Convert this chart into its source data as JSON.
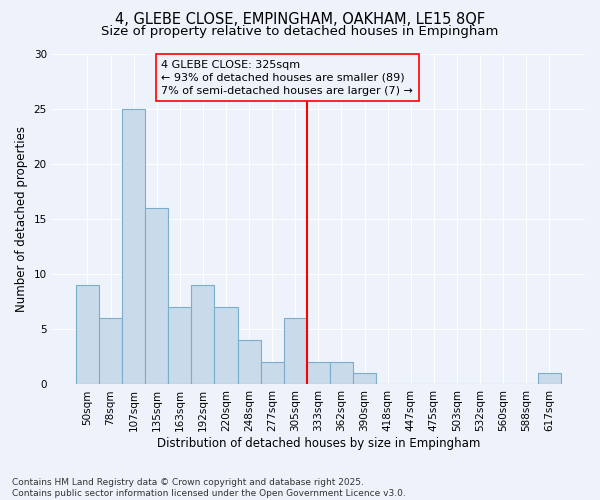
{
  "title1": "4, GLEBE CLOSE, EMPINGHAM, OAKHAM, LE15 8QF",
  "title2": "Size of property relative to detached houses in Empingham",
  "xlabel": "Distribution of detached houses by size in Empingham",
  "ylabel": "Number of detached properties",
  "categories": [
    "50sqm",
    "78sqm",
    "107sqm",
    "135sqm",
    "163sqm",
    "192sqm",
    "220sqm",
    "248sqm",
    "277sqm",
    "305sqm",
    "333sqm",
    "362sqm",
    "390sqm",
    "418sqm",
    "447sqm",
    "475sqm",
    "503sqm",
    "532sqm",
    "560sqm",
    "588sqm",
    "617sqm"
  ],
  "values": [
    9,
    6,
    25,
    16,
    7,
    9,
    7,
    4,
    2,
    6,
    2,
    2,
    1,
    0,
    0,
    0,
    0,
    0,
    0,
    0,
    1
  ],
  "bar_color": "#c9daea",
  "bar_edge_color": "#7aaecc",
  "vline_color": "red",
  "vline_pos": 9.5,
  "annotation_text": "4 GLEBE CLOSE: 325sqm\n← 93% of detached houses are smaller (89)\n7% of semi-detached houses are larger (7) →",
  "annotation_box_color": "red",
  "annotation_bg": "#eef3fb",
  "ylim": [
    0,
    30
  ],
  "yticks": [
    0,
    5,
    10,
    15,
    20,
    25,
    30
  ],
  "background_color": "#eef3fb",
  "grid_color": "#ffffff",
  "footer": "Contains HM Land Registry data © Crown copyright and database right 2025.\nContains public sector information licensed under the Open Government Licence v3.0.",
  "title_fontsize": 10.5,
  "subtitle_fontsize": 9.5,
  "axis_label_fontsize": 8.5,
  "tick_fontsize": 7.5,
  "footer_fontsize": 6.5,
  "annotation_fontsize": 8
}
